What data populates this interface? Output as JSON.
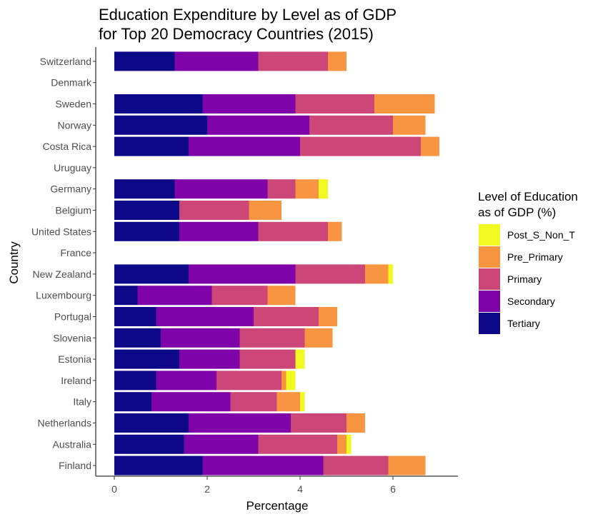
{
  "chart_data": {
    "type": "bar",
    "orientation": "horizontal",
    "stacked": true,
    "title_lines": [
      "Education Expenditure by Level as of GDP",
      "for Top 20 Democracy Countries (2015)"
    ],
    "xlabel": "Percentage",
    "ylabel": "Country",
    "xlim": [
      0,
      7.3
    ],
    "x_ticks": [
      0,
      2,
      4,
      6
    ],
    "grid": false,
    "legend_position": "right",
    "legend_title_lines": [
      "Level of Education",
      "as of GDP (%)"
    ],
    "legend_entries": [
      "Post_S_Non_T",
      "Pre_Primary",
      "Primary",
      "Secondary",
      "Tertiary"
    ],
    "colors": {
      "Tertiary": "#0d0887",
      "Secondary": "#7e03a8",
      "Primary": "#cc4778",
      "Pre_Primary": "#f89540",
      "Post_S_Non_T": "#f0f921"
    },
    "stack_order": [
      "Tertiary",
      "Secondary",
      "Primary",
      "Pre_Primary",
      "Post_S_Non_T"
    ],
    "categories": [
      "Switzerland",
      "Denmark",
      "Sweden",
      "Norway",
      "Costa Rica",
      "Uruguay",
      "Germany",
      "Belgium",
      "United States",
      "France",
      "New Zealand",
      "Luxembourg",
      "Portugal",
      "Slovenia",
      "Estonia",
      "Ireland",
      "Italy",
      "Netherlands",
      "Australia",
      "Finland"
    ],
    "series": [
      {
        "name": "Tertiary",
        "values": [
          1.3,
          null,
          1.9,
          2.0,
          1.6,
          null,
          1.3,
          1.4,
          1.4,
          null,
          1.6,
          0.5,
          0.9,
          1.0,
          1.4,
          0.9,
          0.8,
          1.6,
          1.5,
          1.9
        ]
      },
      {
        "name": "Secondary",
        "values": [
          1.8,
          null,
          2.0,
          2.2,
          2.4,
          null,
          2.0,
          null,
          1.7,
          null,
          2.3,
          1.6,
          2.1,
          1.7,
          1.3,
          1.3,
          1.7,
          2.2,
          1.6,
          2.6
        ]
      },
      {
        "name": "Primary",
        "values": [
          1.5,
          null,
          1.7,
          1.8,
          2.6,
          null,
          0.6,
          1.5,
          1.5,
          null,
          1.5,
          1.2,
          1.4,
          1.4,
          1.2,
          1.4,
          1.0,
          1.2,
          1.7,
          1.4
        ]
      },
      {
        "name": "Pre_Primary",
        "values": [
          0.4,
          null,
          1.3,
          0.7,
          0.4,
          null,
          0.5,
          0.7,
          0.3,
          null,
          0.5,
          0.6,
          0.4,
          0.6,
          null,
          0.1,
          0.5,
          0.4,
          0.2,
          0.8
        ]
      },
      {
        "name": "Post_S_Non_T",
        "values": [
          null,
          null,
          null,
          null,
          null,
          null,
          0.2,
          null,
          null,
          null,
          0.1,
          null,
          null,
          null,
          0.2,
          0.2,
          0.1,
          null,
          0.1,
          null
        ]
      }
    ]
  }
}
